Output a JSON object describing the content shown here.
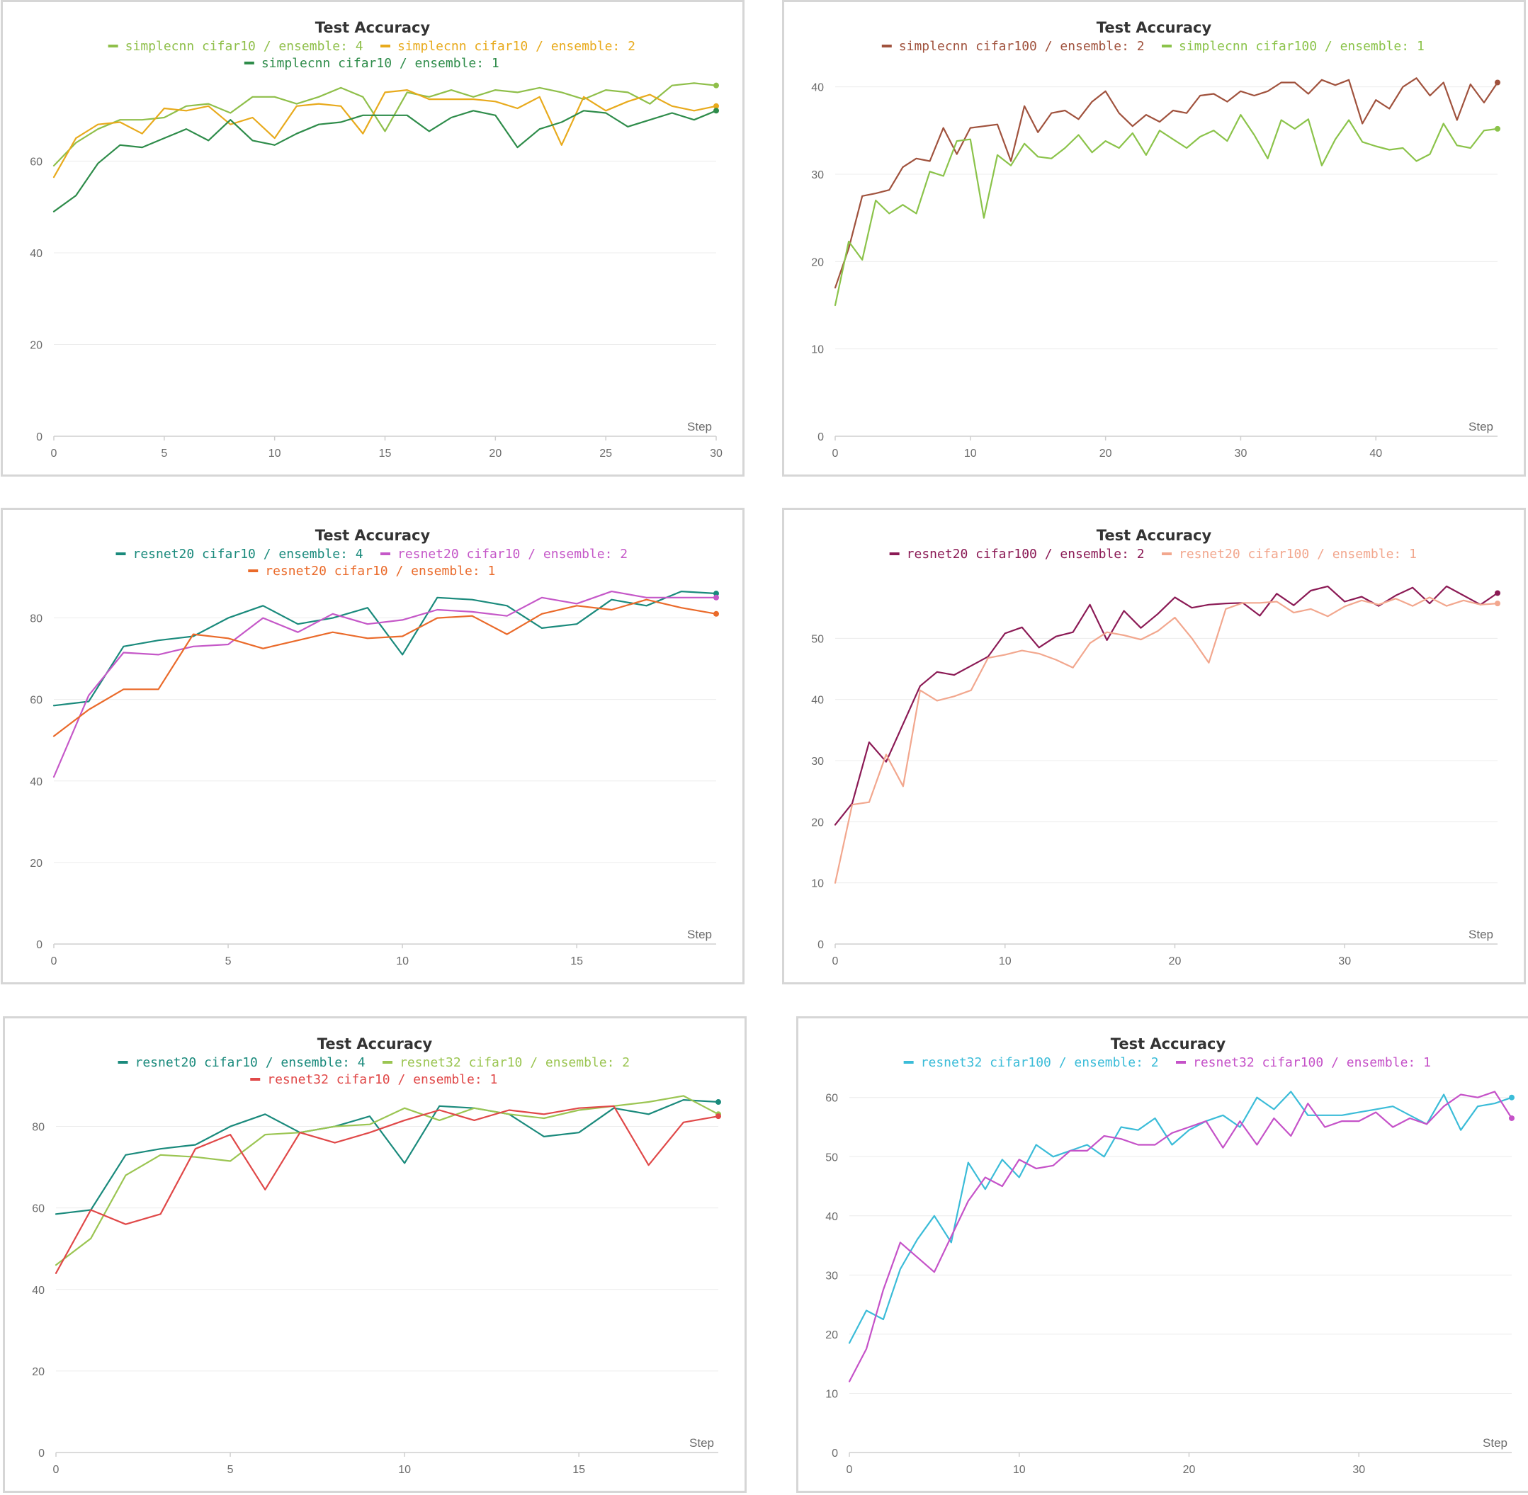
{
  "chart_data": [
    {
      "type": "line",
      "title": "Test Accuracy",
      "xlabel": "Step",
      "xlim": [
        0,
        30
      ],
      "ylim": [
        0,
        80
      ],
      "xticks": [
        0,
        5,
        10,
        15,
        20,
        25,
        30
      ],
      "yticks": [
        0,
        20,
        40,
        60
      ],
      "legend_rows": [
        [
          0,
          1
        ],
        [
          2
        ]
      ],
      "series": [
        {
          "name": "simplecnn cifar10 / ensemble: 4",
          "color": "#8fbf4a",
          "values": [
            59,
            64,
            67,
            69,
            69,
            69.5,
            72,
            72.5,
            70.5,
            74,
            74,
            72.5,
            74,
            76,
            74,
            66.5,
            75,
            74,
            75.5,
            74,
            75.5,
            75,
            76,
            75,
            73.5,
            75.5,
            75,
            72.5,
            76.5,
            77,
            76.5
          ]
        },
        {
          "name": "simplecnn cifar10 / ensemble: 2",
          "color": "#e8aa1c",
          "values": [
            56.5,
            65,
            68,
            68.5,
            66,
            71.5,
            71,
            72,
            68,
            69.5,
            65,
            72,
            72.5,
            72,
            66,
            75,
            75.5,
            73.5,
            73.5,
            73.5,
            73,
            71.5,
            74,
            63.5,
            74,
            71,
            73,
            74.5,
            72,
            71,
            72
          ]
        },
        {
          "name": "simplecnn cifar10 / ensemble: 1",
          "color": "#2e8c4a",
          "values": [
            49,
            52.5,
            59.5,
            63.5,
            63,
            65,
            67,
            64.5,
            69,
            64.5,
            63.5,
            66,
            68,
            68.5,
            70,
            70,
            70,
            66.5,
            69.5,
            71,
            70,
            63,
            67,
            68.5,
            71,
            70.5,
            67.5,
            69,
            70.5,
            69,
            71
          ]
        }
      ]
    },
    {
      "type": "line",
      "title": "Test Accuracy",
      "xlabel": "Step",
      "xlim": [
        0,
        49
      ],
      "ylim": [
        0,
        42
      ],
      "xticks": [
        0,
        10,
        20,
        30,
        40
      ],
      "yticks": [
        0,
        10,
        20,
        30,
        40
      ],
      "legend_rows": [
        [
          0,
          1
        ]
      ],
      "series": [
        {
          "name": "simplecnn cifar100 / ensemble: 2",
          "color": "#a0523d",
          "values": [
            17,
            21.5,
            27.5,
            27.8,
            28.2,
            30.8,
            31.8,
            31.5,
            35.3,
            32.3,
            35.3,
            35.5,
            35.7,
            31.5,
            37.8,
            34.8,
            37,
            37.3,
            36.3,
            38.3,
            39.5,
            37,
            35.5,
            36.8,
            36,
            37.3,
            37,
            39,
            39.2,
            38.3,
            39.5,
            39,
            39.5,
            40.5,
            40.5,
            39.2,
            40.8,
            40.2,
            40.8,
            35.8,
            38.5,
            37.5,
            40,
            41,
            39,
            40.5,
            36.2,
            40.3,
            38.2,
            40.5
          ]
        },
        {
          "name": "simplecnn cifar100 / ensemble: 1",
          "color": "#8bc34a",
          "values": [
            15,
            22.3,
            20.2,
            27,
            25.5,
            26.5,
            25.5,
            30.3,
            29.8,
            33.8,
            34,
            25,
            32.2,
            31,
            33.5,
            32,
            31.8,
            33,
            34.5,
            32.5,
            33.8,
            33,
            34.7,
            32.2,
            35,
            34,
            33,
            34.3,
            35,
            33.8,
            36.8,
            34.5,
            31.8,
            36.2,
            35.2,
            36.3,
            31,
            34,
            36.2,
            33.7,
            33.2,
            32.8,
            33,
            31.5,
            32.3,
            35.8,
            33.3,
            33,
            35,
            35.2
          ]
        }
      ]
    },
    {
      "type": "line",
      "title": "Test Accuracy",
      "xlabel": "Step",
      "xlim": [
        0,
        19
      ],
      "ylim": [
        0,
        90
      ],
      "xticks": [
        0,
        5,
        10,
        15
      ],
      "yticks": [
        0,
        20,
        40,
        60,
        80
      ],
      "legend_rows": [
        [
          0,
          1
        ],
        [
          2
        ]
      ],
      "series": [
        {
          "name": "resnet20 cifar10 / ensemble: 4",
          "color": "#1a8a7c",
          "values": [
            58.5,
            59.5,
            73,
            74.5,
            75.5,
            80,
            83,
            78.5,
            80,
            82.5,
            71,
            85,
            84.5,
            83,
            77.5,
            78.5,
            84.5,
            83,
            86.5,
            86
          ]
        },
        {
          "name": "resnet20 cifar10 / ensemble: 2",
          "color": "#c558c8",
          "values": [
            41,
            61,
            71.5,
            71,
            73,
            73.5,
            80,
            76.5,
            81,
            78.5,
            79.5,
            82,
            81.5,
            80.5,
            85,
            83.5,
            86.5,
            85,
            85,
            85
          ]
        },
        {
          "name": "resnet20 cifar10 / ensemble: 1",
          "color": "#ea6a2a",
          "values": [
            51,
            57.5,
            62.5,
            62.5,
            76,
            75,
            72.5,
            74.5,
            76.5,
            75,
            75.5,
            80,
            80.5,
            76,
            81,
            83,
            82,
            84.5,
            82.5,
            81
          ]
        }
      ]
    },
    {
      "type": "line",
      "title": "Test Accuracy",
      "xlabel": "Step",
      "xlim": [
        0,
        39
      ],
      "ylim": [
        0,
        60
      ],
      "xticks": [
        0,
        10,
        20,
        30
      ],
      "yticks": [
        0,
        10,
        20,
        30,
        40,
        50
      ],
      "legend_rows": [
        [
          0,
          1
        ]
      ],
      "series": [
        {
          "name": "resnet20 cifar100 / ensemble: 2",
          "color": "#8b1a55",
          "values": [
            19.5,
            23,
            33,
            29.8,
            36,
            42.2,
            44.5,
            44,
            45.5,
            47,
            50.8,
            51.8,
            48.5,
            50.3,
            51,
            55.5,
            49.7,
            54.5,
            51.7,
            54,
            56.7,
            55,
            55.5,
            55.7,
            55.8,
            53.7,
            57.3,
            55.4,
            57.8,
            58.5,
            56,
            56.8,
            55.3,
            57,
            58.3,
            55.7,
            58.5,
            57,
            55.5,
            57.4
          ]
        },
        {
          "name": "resnet20 cifar100 / ensemble: 1",
          "color": "#f2a78e",
          "values": [
            10,
            22.8,
            23.2,
            31,
            25.8,
            41.5,
            39.8,
            40.5,
            41.5,
            46.8,
            47.3,
            48,
            47.5,
            46.5,
            45.2,
            49.2,
            51,
            50.5,
            49.8,
            51.2,
            53.4,
            50,
            46,
            54.8,
            55.8,
            55.8,
            56,
            54.2,
            54.8,
            53.6,
            55.2,
            56.2,
            55.5,
            56.5,
            55.3,
            56.7,
            55.3,
            56.2,
            55.5,
            55.7
          ]
        }
      ]
    },
    {
      "type": "line",
      "title": "Test Accuracy",
      "xlabel": "Step",
      "xlim": [
        0,
        19
      ],
      "ylim": [
        0,
        90
      ],
      "xticks": [
        0,
        5,
        10,
        15
      ],
      "yticks": [
        0,
        20,
        40,
        60,
        80
      ],
      "legend_rows": [
        [
          0,
          1
        ],
        [
          2
        ]
      ],
      "series": [
        {
          "name": "resnet20 cifar10 / ensemble: 4",
          "color": "#1a8a7c",
          "values": [
            58.5,
            59.5,
            73,
            74.5,
            75.5,
            80,
            83,
            78.5,
            80,
            82.5,
            71,
            85,
            84.5,
            83,
            77.5,
            78.5,
            84.5,
            83,
            86.5,
            86
          ]
        },
        {
          "name": "resnet32 cifar10 / ensemble: 2",
          "color": "#9bc552",
          "values": [
            46,
            52.5,
            68,
            73,
            72.5,
            71.5,
            78,
            78.5,
            80,
            80.5,
            84.5,
            81.5,
            84.5,
            83,
            82,
            84,
            85,
            86,
            87.5,
            83
          ]
        },
        {
          "name": "resnet32 cifar10 / ensemble: 1",
          "color": "#e04848",
          "values": [
            44,
            59.5,
            56,
            58.5,
            74.5,
            78,
            64.5,
            78.5,
            76,
            78.5,
            81.5,
            84,
            81.5,
            84,
            83,
            84.5,
            85,
            70.5,
            81,
            82.5
          ]
        }
      ]
    },
    {
      "type": "line",
      "title": "Test Accuracy",
      "xlabel": "Step",
      "xlim": [
        0,
        39
      ],
      "ylim": [
        0,
        62
      ],
      "xticks": [
        0,
        10,
        20,
        30
      ],
      "yticks": [
        0,
        10,
        20,
        30,
        40,
        50,
        60
      ],
      "legend_rows": [
        [
          0,
          1
        ]
      ],
      "series": [
        {
          "name": "resnet32 cifar100 / ensemble: 2",
          "color": "#3bbcd8",
          "values": [
            18.5,
            24,
            22.5,
            31,
            36,
            40,
            35.5,
            49,
            44.5,
            49.5,
            46.5,
            52,
            50,
            51,
            52,
            50,
            55,
            54.5,
            56.5,
            52,
            54.5,
            56,
            57,
            55,
            60,
            58,
            61,
            57,
            57,
            57,
            57.5,
            58,
            58.5,
            57,
            55.5,
            60.5,
            54.5,
            58.5,
            59,
            60
          ]
        },
        {
          "name": "resnet32 cifar100 / ensemble: 1",
          "color": "#c552c8",
          "values": [
            12,
            17.5,
            27.5,
            35.5,
            33,
            30.5,
            36.5,
            42.5,
            46.5,
            45,
            49.5,
            48,
            48.5,
            51,
            51,
            53.5,
            53,
            52,
            52,
            54,
            55,
            56,
            51.5,
            56,
            52,
            56.5,
            53.5,
            59,
            55,
            56,
            56,
            57.5,
            55,
            56.5,
            55.5,
            58.5,
            60.5,
            60,
            61,
            56.5
          ]
        }
      ]
    }
  ]
}
